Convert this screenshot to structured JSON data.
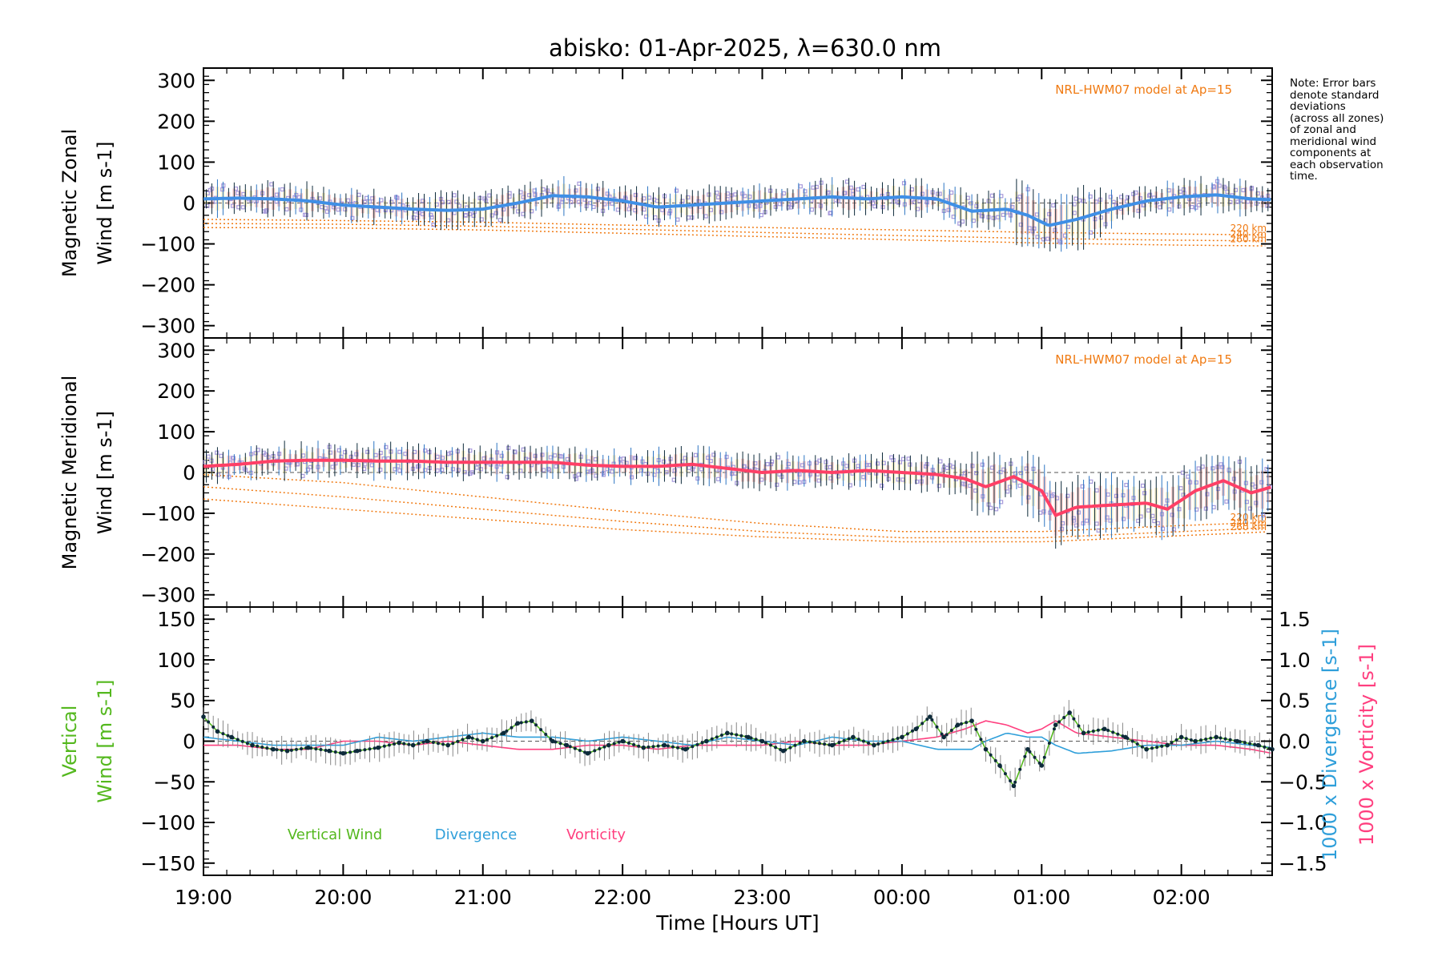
{
  "title": "abisko: 01-Apr-2025, λ=630.0 nm",
  "note_lines": [
    "Note: Error bars",
    "denote standard",
    "deviations",
    "(across all zones)",
    "of zonal and",
    "meridional wind",
    "components at",
    "each observation",
    "time."
  ],
  "colors": {
    "zonal": "#3f8fe6",
    "meridional": "#ff3f66",
    "vertical": "#54b81e",
    "divergence": "#2f9fda",
    "vorticity": "#ff3f7f",
    "model": "#f07a12",
    "scatter_lavender": "#a89bdc",
    "scatter_pink": "#f5a7a0",
    "scatter_yellow": "#f3e1a0",
    "errorbar_dark": "#0d2a3a",
    "errorbar_blue": "#2d75c2"
  },
  "chart_data": [
    {
      "type": "line",
      "id": "zonal",
      "ylabel": [
        "Magnetic Zonal",
        "Wind [m s-1]"
      ],
      "ylim": [
        -330,
        330
      ],
      "yticks": [
        -300,
        -200,
        -100,
        0,
        100,
        200,
        300
      ],
      "xlim": [
        19.0,
        26.65
      ],
      "model_label": "NRL-HWM07 model at Ap=15",
      "model_lines": [
        {
          "name": "220 km",
          "x": [
            19.0,
            20.0,
            21.0,
            22.0,
            23.0,
            24.0,
            25.0,
            26.0,
            26.65
          ],
          "y": [
            -40,
            -43,
            -47,
            -54,
            -60,
            -66,
            -72,
            -76,
            -78
          ]
        },
        {
          "name": "240 km",
          "x": [
            19.0,
            20.0,
            21.0,
            22.0,
            23.0,
            24.0,
            25.0,
            26.0,
            26.65
          ],
          "y": [
            -50,
            -52,
            -57,
            -64,
            -72,
            -80,
            -87,
            -91,
            -93
          ]
        },
        {
          "name": "260 km",
          "x": [
            19.0,
            20.0,
            21.0,
            22.0,
            23.0,
            24.0,
            25.0,
            26.0,
            26.65
          ],
          "y": [
            -60,
            -61,
            -66,
            -74,
            -82,
            -90,
            -98,
            -103,
            -105
          ]
        }
      ],
      "series": [
        {
          "name": "Magnetic Zonal Wind",
          "x": [
            19.0,
            19.25,
            19.5,
            19.75,
            20.0,
            20.25,
            20.5,
            20.75,
            21.0,
            21.25,
            21.5,
            21.75,
            22.0,
            22.25,
            22.5,
            22.75,
            23.0,
            23.25,
            23.5,
            23.75,
            24.0,
            24.25,
            24.5,
            24.75,
            24.9,
            25.05,
            25.25,
            25.5,
            25.75,
            26.0,
            26.25,
            26.5,
            26.65
          ],
          "y": [
            10,
            12,
            10,
            5,
            -5,
            -10,
            -15,
            -18,
            -15,
            0,
            18,
            15,
            5,
            -10,
            -5,
            0,
            5,
            10,
            15,
            10,
            15,
            10,
            -20,
            -15,
            -30,
            -55,
            -40,
            -15,
            5,
            15,
            20,
            10,
            8
          ]
        }
      ]
    },
    {
      "type": "line",
      "id": "meridional",
      "ylabel": [
        "Magnetic Meridional",
        "Wind [m s-1]"
      ],
      "ylim": [
        -330,
        330
      ],
      "yticks": [
        -300,
        -200,
        -100,
        0,
        100,
        200,
        300
      ],
      "xlim": [
        19.0,
        26.65
      ],
      "model_label": "NRL-HWM07 model at Ap=15",
      "model_lines": [
        {
          "name": "220 km",
          "x": [
            19.0,
            20.0,
            21.0,
            22.0,
            23.0,
            24.0,
            25.0,
            26.0,
            26.65
          ],
          "y": [
            -5,
            -25,
            -60,
            -95,
            -125,
            -145,
            -145,
            -130,
            -122
          ]
        },
        {
          "name": "240 km",
          "x": [
            19.0,
            20.0,
            21.0,
            22.0,
            23.0,
            24.0,
            25.0,
            26.0,
            26.65
          ],
          "y": [
            -35,
            -60,
            -90,
            -120,
            -145,
            -160,
            -160,
            -145,
            -135
          ]
        },
        {
          "name": "260 km",
          "x": [
            19.0,
            20.0,
            21.0,
            22.0,
            23.0,
            24.0,
            25.0,
            26.0,
            26.65
          ],
          "y": [
            -65,
            -90,
            -115,
            -140,
            -158,
            -170,
            -170,
            -155,
            -145
          ]
        }
      ],
      "series": [
        {
          "name": "Magnetic Meridional Wind",
          "x": [
            19.0,
            19.25,
            19.5,
            19.75,
            20.0,
            20.25,
            20.5,
            20.75,
            21.0,
            21.25,
            21.5,
            21.75,
            22.0,
            22.25,
            22.5,
            22.75,
            23.0,
            23.25,
            23.5,
            23.75,
            24.0,
            24.25,
            24.45,
            24.6,
            24.8,
            25.0,
            25.1,
            25.25,
            25.5,
            25.75,
            25.9,
            26.1,
            26.3,
            26.5,
            26.65
          ],
          "y": [
            15,
            20,
            28,
            30,
            30,
            28,
            28,
            25,
            25,
            25,
            25,
            18,
            15,
            15,
            20,
            10,
            0,
            5,
            0,
            5,
            0,
            -5,
            -15,
            -35,
            -10,
            -45,
            -105,
            -85,
            -80,
            -75,
            -90,
            -45,
            -20,
            -50,
            -35
          ]
        }
      ]
    },
    {
      "type": "line",
      "id": "vertical",
      "ylabel": [
        "Vertical",
        "Wind [m s-1]"
      ],
      "ylabel_right": [
        "1000 x Divergence [s-1]",
        "1000 x Vorticity [s-1]"
      ],
      "ylim": [
        -165,
        165
      ],
      "yticks": [
        -150,
        -100,
        -50,
        0,
        50,
        100,
        150
      ],
      "ylim_right": [
        -1.65,
        1.65
      ],
      "yticks_right": [
        -1.5,
        -1.0,
        -0.5,
        0.0,
        0.5,
        1.0,
        1.5
      ],
      "xlim": [
        19.0,
        26.65
      ],
      "xticks": [
        19,
        20,
        21,
        22,
        23,
        24,
        25,
        26
      ],
      "xtick_labels": [
        "19:00",
        "20:00",
        "21:00",
        "22:00",
        "23:00",
        "00:00",
        "01:00",
        "02:00"
      ],
      "xlabel": "Time [Hours UT]",
      "legend": [
        "Vertical Wind",
        "Divergence",
        "Vorticity"
      ],
      "series": [
        {
          "name": "Vertical Wind",
          "x": [
            19.0,
            19.1,
            19.2,
            19.35,
            19.5,
            19.6,
            19.75,
            19.9,
            20.0,
            20.1,
            20.25,
            20.4,
            20.5,
            20.6,
            20.75,
            20.9,
            21.0,
            21.15,
            21.25,
            21.35,
            21.5,
            21.6,
            21.75,
            21.9,
            22.0,
            22.15,
            22.3,
            22.45,
            22.6,
            22.75,
            22.9,
            23.0,
            23.15,
            23.3,
            23.5,
            23.65,
            23.8,
            24.0,
            24.1,
            24.2,
            24.3,
            24.4,
            24.5,
            24.6,
            24.7,
            24.8,
            24.9,
            25.0,
            25.1,
            25.2,
            25.3,
            25.45,
            25.6,
            25.75,
            25.9,
            26.0,
            26.1,
            26.25,
            26.4,
            26.55,
            26.65
          ],
          "y": [
            30,
            12,
            5,
            -5,
            -10,
            -12,
            -8,
            -12,
            -15,
            -12,
            -8,
            -2,
            -5,
            0,
            -5,
            5,
            0,
            10,
            22,
            25,
            0,
            -5,
            -15,
            -5,
            0,
            -8,
            -5,
            -10,
            0,
            10,
            5,
            0,
            -12,
            0,
            -5,
            5,
            -5,
            5,
            15,
            30,
            5,
            20,
            25,
            -10,
            -30,
            -55,
            -10,
            -30,
            20,
            35,
            10,
            15,
            5,
            -10,
            -5,
            5,
            0,
            5,
            0,
            -5,
            -10
          ]
        },
        {
          "name": "Divergence",
          "axis": "right",
          "x": [
            19.0,
            19.25,
            19.5,
            19.75,
            20.0,
            20.25,
            20.5,
            20.75,
            21.0,
            21.25,
            21.5,
            21.75,
            22.0,
            22.25,
            22.5,
            22.75,
            23.0,
            23.25,
            23.5,
            23.75,
            24.0,
            24.25,
            24.5,
            24.6,
            24.75,
            24.9,
            25.0,
            25.1,
            25.25,
            25.5,
            25.75,
            26.0,
            26.25,
            26.5,
            26.65
          ],
          "y": [
            0.05,
            0.0,
            -0.05,
            -0.05,
            -0.05,
            0.05,
            0.0,
            0.05,
            0.1,
            0.05,
            0.05,
            0.0,
            0.05,
            0.0,
            -0.05,
            0.05,
            0.0,
            -0.05,
            0.05,
            0.0,
            0.0,
            -0.1,
            -0.1,
            0.0,
            0.1,
            0.05,
            0.05,
            -0.05,
            -0.15,
            -0.12,
            -0.05,
            -0.05,
            0.0,
            -0.05,
            -0.08
          ]
        },
        {
          "name": "Vorticity",
          "axis": "right",
          "x": [
            19.0,
            19.25,
            19.5,
            19.75,
            20.0,
            20.25,
            20.5,
            20.75,
            21.0,
            21.25,
            21.5,
            21.75,
            22.0,
            22.25,
            22.5,
            22.75,
            23.0,
            23.25,
            23.5,
            23.75,
            24.0,
            24.25,
            24.45,
            24.6,
            24.75,
            24.9,
            25.0,
            25.1,
            25.25,
            25.5,
            25.75,
            26.0,
            26.25,
            26.5,
            26.65
          ],
          "y": [
            -0.05,
            -0.05,
            -0.1,
            -0.1,
            0.0,
            0.0,
            -0.05,
            0.0,
            -0.05,
            -0.1,
            -0.1,
            -0.05,
            -0.05,
            -0.1,
            -0.05,
            -0.05,
            -0.05,
            0.0,
            -0.05,
            -0.05,
            0.0,
            0.05,
            0.15,
            0.25,
            0.2,
            0.1,
            0.15,
            0.25,
            0.1,
            0.05,
            0.0,
            -0.05,
            -0.05,
            -0.1,
            -0.15
          ]
        }
      ]
    }
  ]
}
